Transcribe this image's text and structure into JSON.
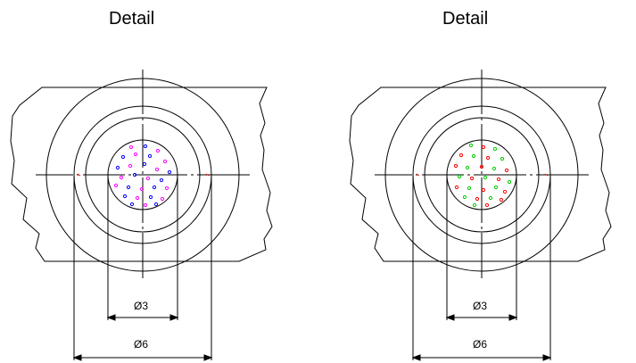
{
  "panels": [
    {
      "title": "Detail",
      "dim_inner": "Ø3",
      "dim_outer": "Ø6",
      "dot_colors": [
        "#ff00ff",
        "#0000ff"
      ]
    },
    {
      "title": "Detail",
      "dim_inner": "Ø3",
      "dim_outer": "Ø6",
      "dot_colors": [
        "#ff0000",
        "#00cc00"
      ]
    }
  ],
  "colors": {
    "line": "#000000",
    "center_mark": "#ff0000"
  }
}
